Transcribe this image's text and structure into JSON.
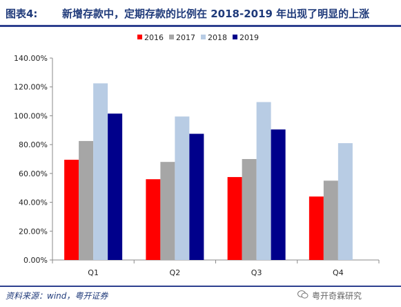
{
  "header": {
    "figure_label": "图表4:",
    "title": "新增存款中，定期存款的比例在 2018-2019 年出现了明显的上涨"
  },
  "footer": {
    "source": "资料来源：wind，粤开证券",
    "watermark": "粤开奇霖研究"
  },
  "chart_data": {
    "type": "bar",
    "categories": [
      "Q1",
      "Q2",
      "Q3",
      "Q4"
    ],
    "series": [
      {
        "name": "2016",
        "color": "#ff0000",
        "values": [
          69.5,
          56.0,
          57.5,
          44.0
        ]
      },
      {
        "name": "2017",
        "color": "#a6a6a6",
        "values": [
          82.5,
          68.0,
          70.0,
          55.0
        ]
      },
      {
        "name": "2018",
        "color": "#b8cce4",
        "values": [
          122.5,
          99.5,
          109.5,
          81.0
        ]
      },
      {
        "name": "2019",
        "color": "#00008b",
        "values": [
          101.5,
          87.5,
          90.5,
          null
        ]
      }
    ],
    "yticks": [
      "0.00%",
      "20.00%",
      "40.00%",
      "60.00%",
      "80.00%",
      "100.00%",
      "120.00%",
      "140.00%"
    ],
    "ylim": [
      0,
      140
    ],
    "legend_position": "top-center",
    "grid": false
  }
}
